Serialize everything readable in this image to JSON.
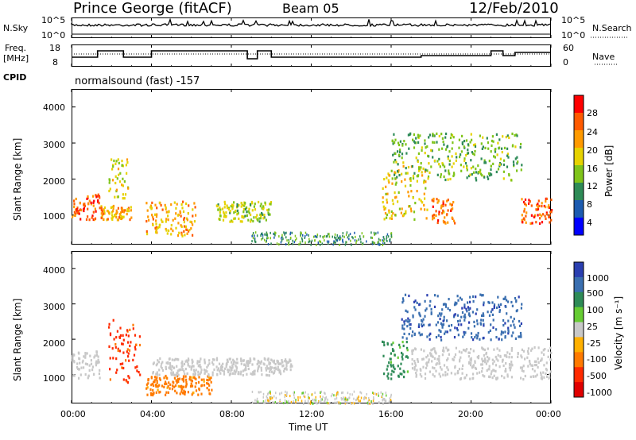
{
  "header": {
    "title": "Prince George (fitACF)",
    "beam": "Beam 05",
    "date": "12/Feb/2010"
  },
  "noise_panel": {
    "left_label": "N.Sky",
    "right_label": "N.Search",
    "left_ticks": [
      "10^5",
      "10^0"
    ],
    "right_ticks": [
      "10^5",
      "10^0"
    ]
  },
  "freq_panel": {
    "left_label_1": "Freq.",
    "left_label_2": "[MHz]",
    "right_label": "Nave",
    "left_ticks": [
      "18",
      "8"
    ],
    "right_ticks": [
      "60",
      "0"
    ]
  },
  "cpid": {
    "label": "CPID",
    "mode": "normalsound (fast) -157"
  },
  "power_panel": {
    "ylabel": "Slant Range [km]",
    "yticks": [
      "4000",
      "3000",
      "2000",
      "1000"
    ],
    "colorbar_label": "Power [dB]",
    "colorbar_ticks": [
      "28",
      "24",
      "20",
      "16",
      "12",
      "8",
      "4"
    ],
    "colorbar_colors": [
      "#ff0000",
      "#ff5a00",
      "#ff9a00",
      "#e6d200",
      "#7fc41a",
      "#2e8b57",
      "#1c5bb0",
      "#0000ff"
    ]
  },
  "velocity_panel": {
    "ylabel": "Slant Range [km]",
    "yticks": [
      "4000",
      "3000",
      "2000",
      "1000"
    ],
    "colorbar_label": "Velocity [m s⁻¹]",
    "colorbar_ticks": [
      "1000",
      "500",
      "100",
      "25",
      "-25",
      "-100",
      "-500",
      "-1000"
    ],
    "colorbar_colors": [
      "#2a3fb0",
      "#3a6fb0",
      "#2e8b57",
      "#66cc33",
      "#c8c8c8",
      "#ffb000",
      "#ff7a00",
      "#ff2a00",
      "#e00000"
    ]
  },
  "xaxis": {
    "label": "Time UT",
    "ticks": [
      "00:00",
      "04:00",
      "08:00",
      "12:00",
      "16:00",
      "20:00",
      "00:00"
    ]
  },
  "chart_data": [
    {
      "type": "heatmap",
      "title": "Power [dB]",
      "ylabel": "Slant Range [km]",
      "xlabel": "",
      "x_range": [
        "00:00",
        "24:00"
      ],
      "ylim": [
        180,
        4500
      ],
      "zlim": [
        0,
        30
      ],
      "blobs": [
        {
          "t0": 0.0,
          "t1": 1.4,
          "r0": 900,
          "r1": 1600,
          "power": 26
        },
        {
          "t0": 1.4,
          "t1": 3.0,
          "r0": 900,
          "r1": 1300,
          "power": 20
        },
        {
          "t0": 1.8,
          "t1": 2.8,
          "r0": 1500,
          "r1": 2600,
          "power": 16
        },
        {
          "t0": 3.7,
          "t1": 6.2,
          "r0": 450,
          "r1": 1400,
          "power": 20
        },
        {
          "t0": 7.2,
          "t1": 10.0,
          "r0": 850,
          "r1": 1400,
          "power": 14
        },
        {
          "t0": 15.5,
          "t1": 17.8,
          "r0": 900,
          "r1": 2400,
          "power": 18
        },
        {
          "t0": 16.0,
          "t1": 22.5,
          "r0": 2000,
          "r1": 3300,
          "power": 12
        },
        {
          "t0": 18.0,
          "t1": 19.2,
          "r0": 800,
          "r1": 1500,
          "power": 24
        },
        {
          "t0": 22.5,
          "t1": 24.0,
          "r0": 800,
          "r1": 1500,
          "power": 25
        }
      ]
    },
    {
      "type": "heatmap",
      "title": "Velocity [m s⁻¹]",
      "ylabel": "Slant Range [km]",
      "xlabel": "Time UT",
      "x_range": [
        "00:00",
        "24:00"
      ],
      "ylim": [
        180,
        4500
      ],
      "zlim": [
        -1000,
        1000
      ],
      "blobs": [
        {
          "t0": 0.0,
          "t1": 1.4,
          "r0": 900,
          "r1": 1700,
          "velocity": 0
        },
        {
          "t0": 1.8,
          "t1": 3.4,
          "r0": 800,
          "r1": 2600,
          "velocity": -400
        },
        {
          "t0": 3.7,
          "t1": 7.0,
          "r0": 450,
          "r1": 1000,
          "velocity": -150
        },
        {
          "t0": 4.0,
          "t1": 11.0,
          "r0": 1000,
          "r1": 1500,
          "velocity": 0
        },
        {
          "t0": 15.5,
          "t1": 16.8,
          "r0": 900,
          "r1": 2000,
          "velocity": 80
        },
        {
          "t0": 16.5,
          "t1": 22.5,
          "r0": 2000,
          "r1": 3300,
          "velocity": 600
        },
        {
          "t0": 17.0,
          "t1": 24.0,
          "r0": 900,
          "r1": 1800,
          "velocity": 0
        }
      ]
    }
  ]
}
